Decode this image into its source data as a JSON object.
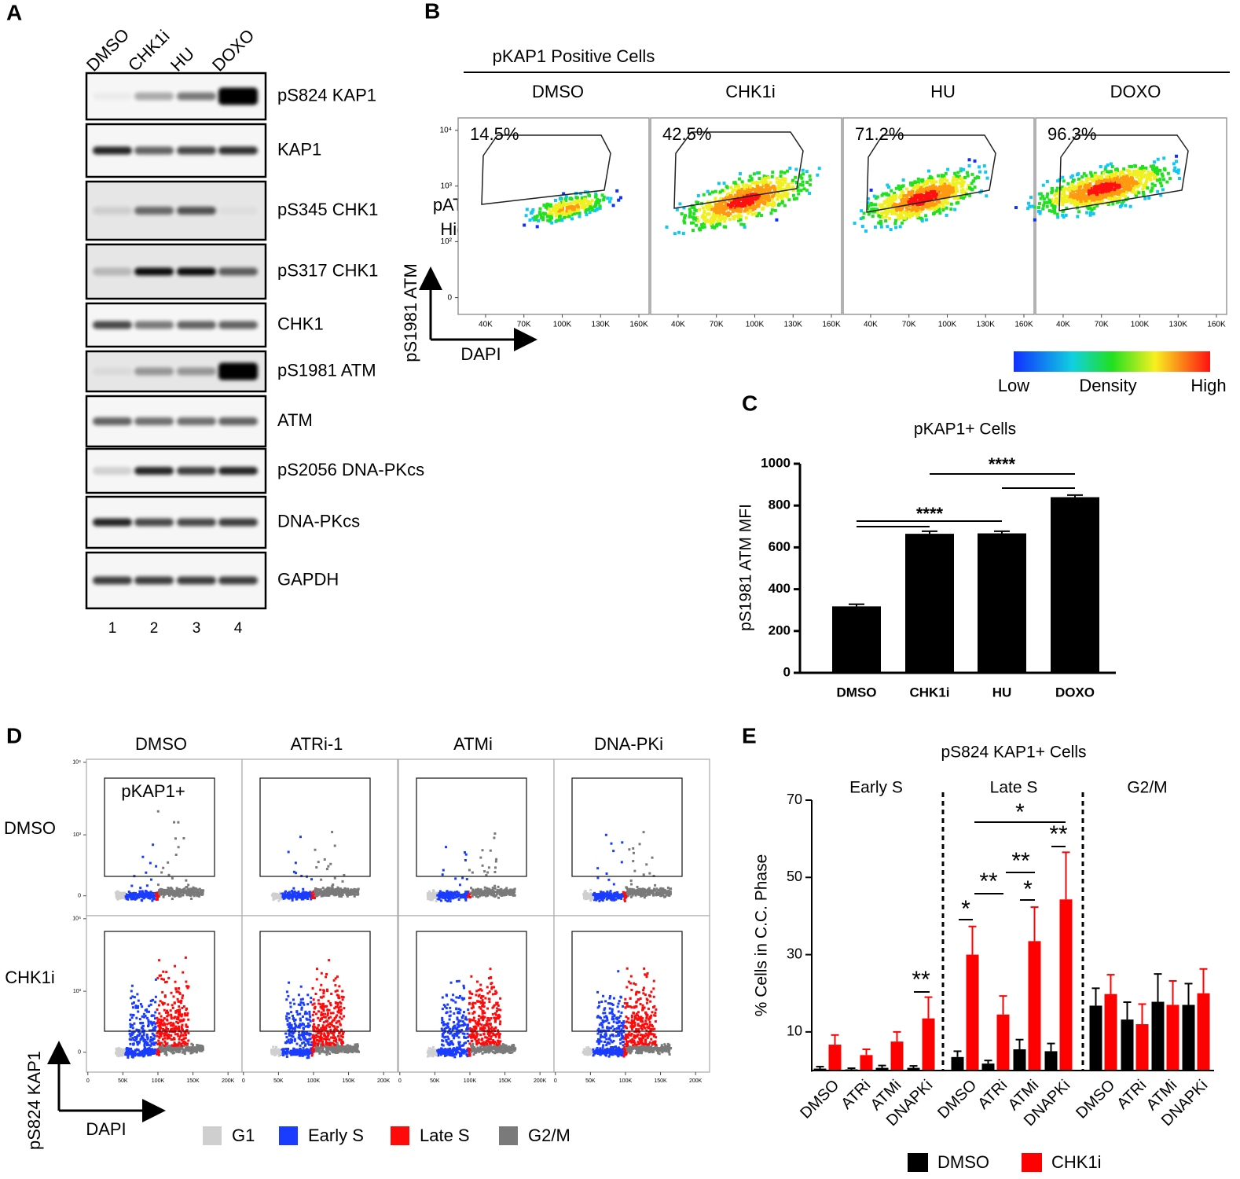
{
  "panel_labels": [
    "A",
    "B",
    "C",
    "D",
    "E"
  ],
  "blot": {
    "lanes": [
      "DMSO",
      "CHK1i",
      "HU",
      "DOXO"
    ],
    "lane_numbers": [
      "1",
      "2",
      "3",
      "4"
    ],
    "rows": [
      "pS824 KAP1",
      "KAP1",
      "pS345 CHK1",
      "pS317 CHK1",
      "CHK1",
      "pS1981 ATM",
      "ATM",
      "pS2056 DNA-PKcs",
      "DNA-PKcs",
      "GAPDH"
    ]
  },
  "flow_b": {
    "title": "pKAP1 Positive Cells",
    "conditions": [
      "DMSO",
      "CHK1i",
      "HU",
      "DOXO"
    ],
    "percentages": [
      "14.5%",
      "42.5%",
      "71.2%",
      "96.3%"
    ],
    "gate_label": [
      "pATM-",
      "High"
    ],
    "y_label": "pS1981 ATM",
    "x_label": "DAPI",
    "xlim": [
      18500,
      168000
    ],
    "xticks": [
      {
        "value": 40000,
        "label": "40K"
      },
      {
        "value": 70000,
        "label": "70K"
      },
      {
        "value": 100000,
        "label": "100K"
      },
      {
        "value": 130000,
        "label": "130K"
      },
      {
        "value": 160000,
        "label": "160K"
      }
    ],
    "ylim": [
      -15,
      16700
    ],
    "y_scale": "biexponential",
    "yticks": [
      0,
      {
        "value": 100,
        "label": "10²"
      },
      {
        "value": 1000,
        "label": "10³"
      },
      {
        "value": 10000,
        "label": "10⁴"
      }
    ],
    "colorbar": {
      "low": "Low",
      "label": "Density",
      "high": "High"
    }
  },
  "flow_d": {
    "columns": [
      "DMSO",
      "ATRi-1",
      "ATMi",
      "DNA-PKi"
    ],
    "rows": [
      "DMSO",
      "CHK1i"
    ],
    "gate_label": "pKAP1+",
    "y_label": "pS824 KAP1",
    "x_label": "DAPI",
    "xlim": [
      -2000,
      220000
    ],
    "xticks": [
      0,
      {
        "value": 50000,
        "label": "50K"
      },
      {
        "value": 100000,
        "label": "100K"
      },
      {
        "value": 150000,
        "label": "150K"
      },
      {
        "value": 200000,
        "label": "200K"
      }
    ],
    "ylim": [
      -200,
      11000
    ],
    "y_scale": "biexponential",
    "yticks": [
      0,
      {
        "value": 1000,
        "label": "10³"
      },
      {
        "value": 10000,
        "label": "10⁴"
      }
    ],
    "legend": [
      {
        "name": "G1",
        "color": "#cfcfcf"
      },
      {
        "name": "Early S",
        "color": "#1a3cff"
      },
      {
        "name": "Late S",
        "color": "#ff0a0a"
      },
      {
        "name": "G2/M",
        "color": "#7a7a7a"
      }
    ]
  },
  "chart_data": [
    {
      "type": "bar",
      "title": "pKAP1+ Cells",
      "y_label": "pS1981 ATM MFI",
      "categories": [
        "DMSO",
        "CHK1i",
        "HU",
        "DOXO"
      ],
      "values": [
        318,
        665,
        667,
        840
      ],
      "errors": [
        10,
        12,
        10,
        10
      ],
      "color": "#000000",
      "ylim": [
        0,
        1000
      ],
      "yticks": [
        0,
        200,
        400,
        600,
        800,
        1000
      ],
      "annotations": [
        "****",
        "****"
      ]
    },
    {
      "type": "grouped_bar",
      "title": "pS824 KAP1+ Cells",
      "y_label": "% Cells in C.C. Phase",
      "groups": [
        "Early S",
        "Late S",
        "G2/M"
      ],
      "categories": [
        "DMSO",
        "ATRi",
        "ATMi",
        "DNAPKi",
        "DMSO",
        "ATRi",
        "ATMi",
        "DNAPKi",
        "DMSO",
        "ATRi",
        "ATMi",
        "DNAPKi"
      ],
      "series": [
        {
          "name": "DMSO",
          "color": "#000000",
          "values": [
            0.5,
            0.3,
            0.7,
            0.7,
            3.5,
            1.8,
            5.5,
            5,
            16.8,
            13.2,
            17.8,
            17
          ],
          "errors": [
            0.5,
            0.3,
            0.6,
            0.5,
            1.5,
            0.8,
            2.5,
            2,
            4.5,
            4.5,
            7.2,
            5.5
          ]
        },
        {
          "name": "CHK1i",
          "color": "#ff0000",
          "values": [
            6.7,
            4,
            7.5,
            13.5,
            30,
            14.5,
            33.5,
            44.3,
            19.8,
            12,
            17,
            20
          ],
          "errors": [
            2.5,
            1.5,
            2.5,
            5.5,
            7.3,
            4.8,
            8.8,
            12.2,
            5,
            5.2,
            6.2,
            6.3
          ]
        }
      ],
      "ylim": [
        0,
        70
      ],
      "yticks": [
        10,
        30,
        50,
        70
      ],
      "annotations": [
        "**",
        "*",
        "**",
        "**",
        "*",
        "*",
        "**"
      ]
    }
  ]
}
